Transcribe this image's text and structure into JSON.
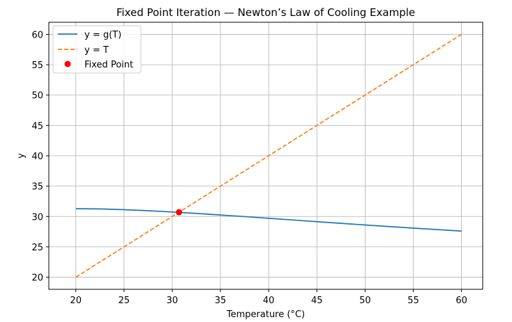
{
  "chart_data": {
    "type": "line",
    "title": "Fixed Point Iteration — Newton’s Law of Cooling Example",
    "xlabel": "Temperature (°C)",
    "ylabel": "y",
    "xlim": [
      17.2,
      62.2
    ],
    "ylim": [
      18.0,
      62.0
    ],
    "xticks": [
      20,
      25,
      30,
      35,
      40,
      45,
      50,
      55,
      60
    ],
    "yticks": [
      20,
      25,
      30,
      35,
      40,
      45,
      50,
      55,
      60
    ],
    "grid": true,
    "legend_position": "upper left",
    "series": [
      {
        "name": "y = g(T)",
        "style": "solid",
        "color": "#1f77b4",
        "x": [
          20,
          22.5,
          25,
          27.5,
          30,
          32.5,
          35,
          37.5,
          40,
          42.5,
          45,
          47.5,
          50,
          52.5,
          55,
          57.5,
          60
        ],
        "y": [
          31.28,
          31.25,
          31.12,
          30.95,
          30.74,
          30.5,
          30.25,
          29.98,
          29.7,
          29.42,
          29.14,
          28.87,
          28.6,
          28.34,
          28.08,
          27.84,
          27.6
        ]
      },
      {
        "name": "y = T",
        "style": "dashed",
        "color": "#ff7f0e",
        "x": [
          20,
          60
        ],
        "y": [
          20,
          60
        ]
      }
    ],
    "points": [
      {
        "name": "Fixed Point",
        "color": "#ff0000",
        "x": 30.7,
        "y": 30.7
      }
    ]
  }
}
